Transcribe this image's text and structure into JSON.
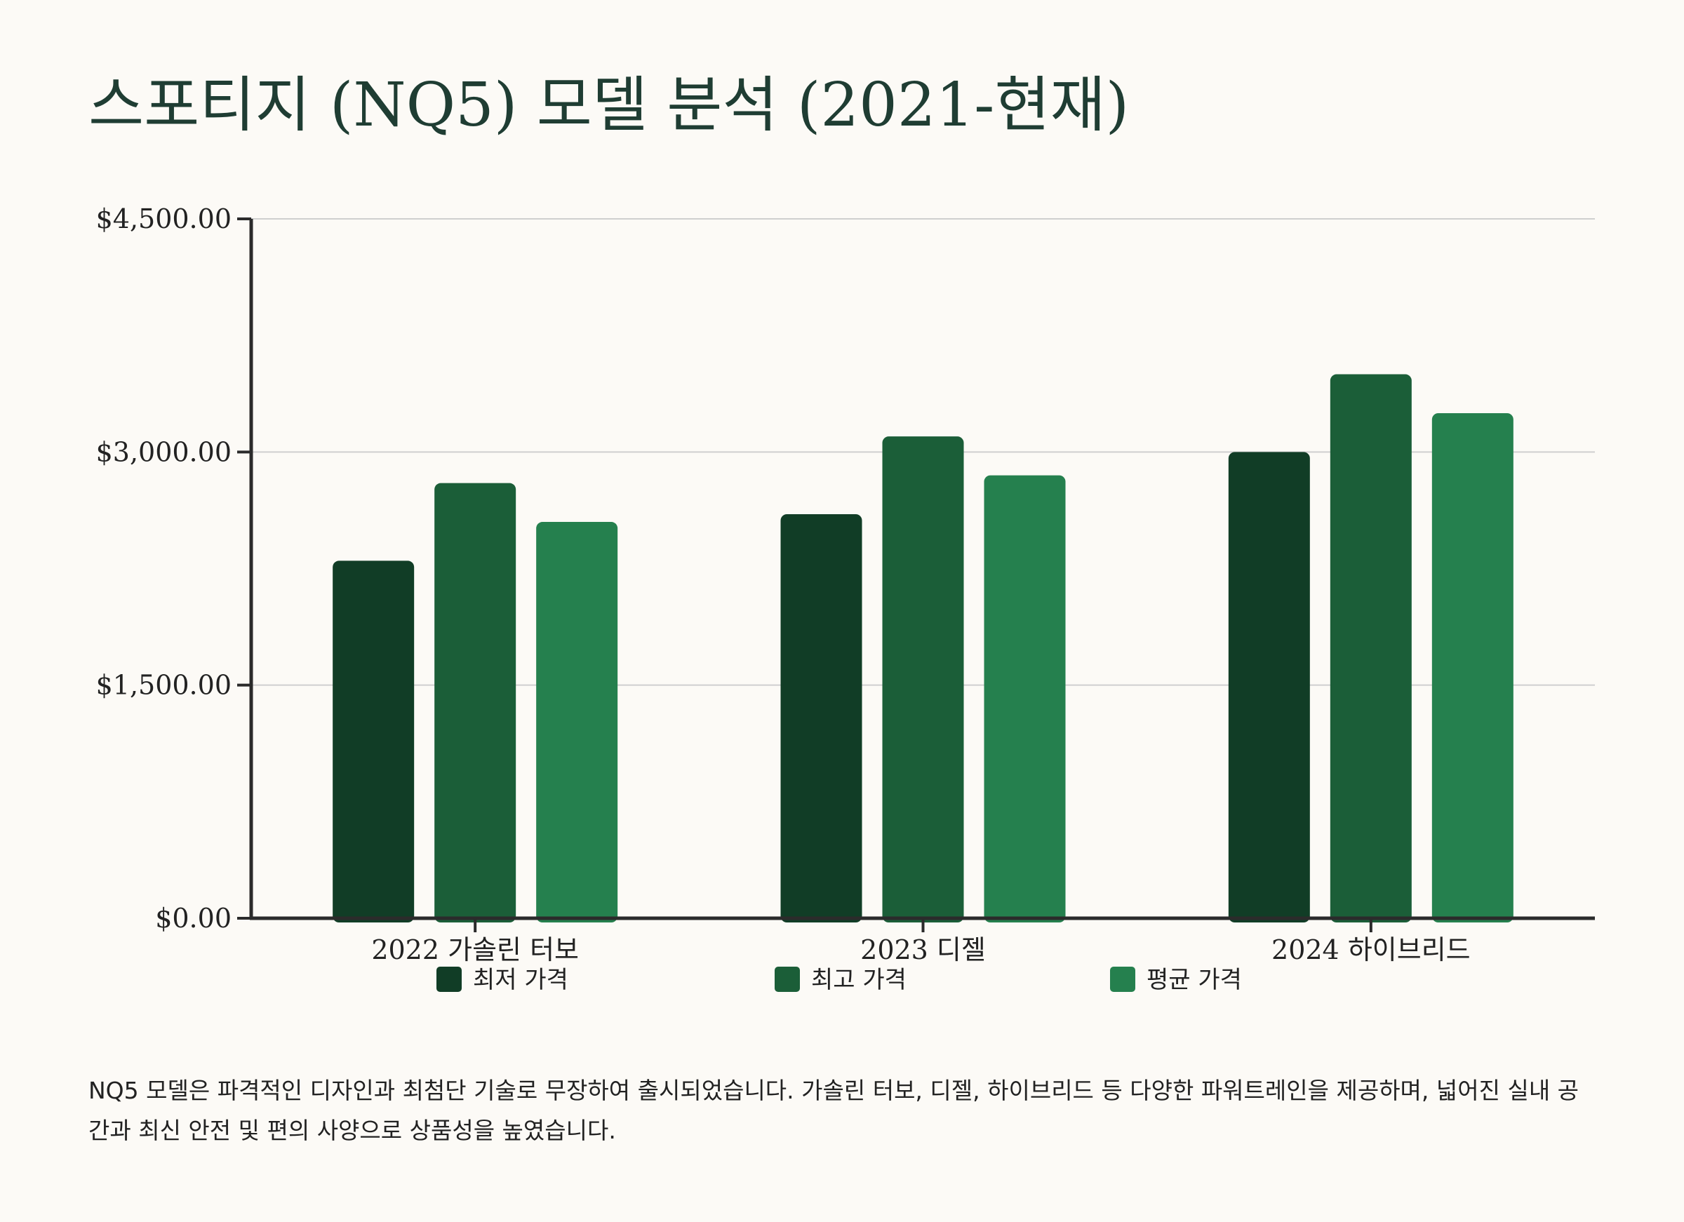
{
  "title": "스포티지 (NQ5) 모델 분석 (2021-현재)",
  "description": "NQ5 모델은 파격적인 디자인과 최첨단 기술로 무장하여 출시되었습니다. 가솔린 터보, 디젤, 하이브리드 등 다양한 파워트레인을 제공하며, 넓어진 실내 공간과 최신 안전 및 편의 사양으로 상품성을 높였습니다.",
  "chart_data": {
    "type": "bar",
    "title": "",
    "xlabel": "",
    "ylabel": "",
    "categories": [
      "2022 가솔린 터보",
      "2023 디젤",
      "2024 하이브리드"
    ],
    "series": [
      {
        "name": "최저 가격",
        "values": [
          2300,
          2600,
          3000
        ],
        "color": "#113d26"
      },
      {
        "name": "최고 가격",
        "values": [
          2800,
          3100,
          3500
        ],
        "color": "#1b5e38"
      },
      {
        "name": "평균 가격",
        "values": [
          2550,
          2850,
          3250
        ],
        "color": "#25804e"
      }
    ],
    "yticks": [
      {
        "value": 0,
        "label": "$0.00"
      },
      {
        "value": 1500,
        "label": "$1,500.00"
      },
      {
        "value": 3000,
        "label": "$3,000.00"
      },
      {
        "value": 4500,
        "label": "$4,500.00"
      }
    ],
    "ylim": [
      0,
      4500
    ],
    "grid": true,
    "legend_position": "bottom"
  }
}
